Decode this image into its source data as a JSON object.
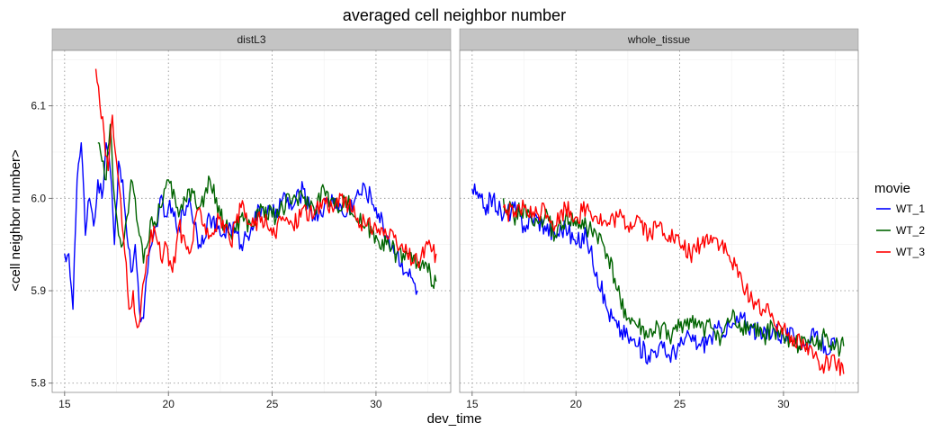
{
  "chart_data": {
    "type": "line",
    "title": "averaged cell neighbor number",
    "xlabel": "dev_time",
    "ylabel": "<cell neighbor number>",
    "xlim": [
      14.4,
      33.6
    ],
    "ylim": [
      5.79,
      6.16
    ],
    "x_ticks": [
      15,
      20,
      25,
      30
    ],
    "y_ticks": [
      5.8,
      5.9,
      6.0,
      6.1
    ],
    "y_tick_labels": [
      "5.8",
      "5.9",
      "6.0",
      "6.1"
    ],
    "grid": true,
    "legend": {
      "title": "movie",
      "position": "right",
      "entries": [
        "WT_1",
        "WT_2",
        "WT_3"
      ]
    },
    "series_colors": {
      "WT_1": "#0000ff",
      "WT_2": "#006400",
      "WT_3": "#ff0000"
    },
    "panels": [
      {
        "name": "distL3",
        "series": [
          {
            "name": "WT_1",
            "x": [
              15.0,
              15.2,
              15.4,
              15.6,
              15.8,
              16.0,
              16.2,
              16.4,
              16.6,
              16.8,
              17.0,
              17.2,
              17.4,
              17.6,
              17.8,
              18.0,
              18.2,
              18.4,
              18.6,
              18.8,
              19.0,
              19.2,
              19.4,
              19.6,
              19.8,
              20.0,
              20.5,
              21.0,
              21.5,
              22.0,
              22.5,
              23.0,
              23.5,
              24.0,
              24.5,
              25.0,
              25.5,
              26.0,
              26.5,
              27.0,
              27.5,
              28.0,
              28.5,
              29.0,
              29.5,
              30.0,
              30.5,
              31.0,
              31.5,
              32.0
            ],
            "values": [
              5.94,
              5.94,
              5.88,
              6.02,
              6.06,
              5.96,
              6.0,
              5.97,
              6.02,
              6.0,
              6.06,
              6.03,
              5.95,
              6.04,
              6.02,
              5.96,
              5.92,
              5.95,
              5.88,
              5.87,
              5.92,
              5.95,
              5.97,
              6.0,
              5.98,
              5.99,
              5.97,
              6.0,
              5.95,
              5.98,
              5.96,
              5.97,
              5.95,
              5.97,
              5.99,
              5.98,
              6.0,
              5.99,
              6.01,
              5.98,
              5.99,
              6.0,
              5.98,
              6.0,
              6.01,
              5.99,
              5.96,
              5.94,
              5.92,
              5.9
            ]
          },
          {
            "name": "WT_2",
            "x": [
              16.6,
              16.8,
              17.0,
              17.2,
              17.4,
              17.6,
              17.8,
              18.0,
              18.2,
              18.4,
              18.6,
              18.8,
              19.0,
              19.2,
              19.4,
              19.6,
              19.8,
              20.0,
              20.5,
              21.0,
              21.5,
              22.0,
              22.5,
              23.0,
              23.5,
              24.0,
              24.5,
              25.0,
              25.5,
              26.0,
              26.5,
              27.0,
              27.5,
              28.0,
              28.5,
              29.0,
              29.5,
              30.0,
              30.5,
              31.0,
              31.5,
              32.0,
              32.5,
              32.9
            ],
            "values": [
              6.06,
              6.04,
              6.02,
              6.08,
              6.0,
              5.96,
              5.95,
              5.98,
              6.02,
              6.0,
              5.96,
              5.93,
              5.95,
              5.98,
              5.97,
              5.99,
              6.01,
              6.02,
              5.98,
              6.01,
              5.99,
              6.02,
              5.98,
              5.96,
              5.98,
              5.97,
              5.99,
              5.98,
              5.99,
              6.0,
              6.0,
              5.99,
              6.01,
              5.99,
              6.0,
              5.98,
              5.97,
              5.96,
              5.95,
              5.94,
              5.94,
              5.93,
              5.92,
              5.91
            ]
          },
          {
            "name": "WT_3",
            "x": [
              16.5,
              16.7,
              16.9,
              17.1,
              17.3,
              17.5,
              17.7,
              17.9,
              18.1,
              18.3,
              18.5,
              18.7,
              18.9,
              19.1,
              19.3,
              19.5,
              19.7,
              19.9,
              20.2,
              20.5,
              21.0,
              21.5,
              22.0,
              22.5,
              23.0,
              23.5,
              24.0,
              24.5,
              25.0,
              25.5,
              26.0,
              26.5,
              27.0,
              27.5,
              28.0,
              28.5,
              29.0,
              29.5,
              30.0,
              30.5,
              31.0,
              31.5,
              32.0,
              32.5,
              32.9
            ],
            "values": [
              6.14,
              6.1,
              6.07,
              6.03,
              6.09,
              6.04,
              6.0,
              5.94,
              5.88,
              5.9,
              5.86,
              5.89,
              5.92,
              5.95,
              5.97,
              5.95,
              5.93,
              5.95,
              5.92,
              5.97,
              5.94,
              5.99,
              5.96,
              5.98,
              5.95,
              5.99,
              5.97,
              5.98,
              5.96,
              5.98,
              5.97,
              5.99,
              5.98,
              6.0,
              5.99,
              6.0,
              5.98,
              5.97,
              5.97,
              5.96,
              5.95,
              5.94,
              5.93,
              5.95,
              5.94
            ]
          }
        ]
      },
      {
        "name": "whole_tissue",
        "series": [
          {
            "name": "WT_1",
            "x": [
              15.0,
              15.3,
              15.6,
              16.0,
              16.5,
              17.0,
              17.5,
              18.0,
              18.5,
              19.0,
              19.5,
              20.0,
              20.5,
              21.0,
              21.5,
              22.0,
              22.5,
              23.0,
              23.5,
              24.0,
              24.5,
              25.0,
              25.5,
              26.0,
              26.5,
              27.0,
              27.5,
              28.0,
              28.5,
              29.0,
              29.5,
              30.0,
              30.5,
              31.0,
              31.5,
              32.0,
              32.5
            ],
            "values": [
              6.01,
              6.0,
              5.99,
              6.0,
              5.98,
              5.99,
              5.97,
              5.98,
              5.97,
              5.96,
              5.97,
              5.95,
              5.96,
              5.92,
              5.88,
              5.86,
              5.85,
              5.84,
              5.83,
              5.84,
              5.83,
              5.84,
              5.85,
              5.84,
              5.85,
              5.86,
              5.86,
              5.87,
              5.86,
              5.85,
              5.86,
              5.85,
              5.85,
              5.84,
              5.85,
              5.84,
              5.84
            ]
          },
          {
            "name": "WT_2",
            "x": [
              16.5,
              17.0,
              17.5,
              18.0,
              18.5,
              19.0,
              19.5,
              20.0,
              20.5,
              21.0,
              21.5,
              22.0,
              22.5,
              23.0,
              23.5,
              24.0,
              24.5,
              25.0,
              25.5,
              26.0,
              26.5,
              27.0,
              27.5,
              28.0,
              28.5,
              29.0,
              29.5,
              30.0,
              30.5,
              31.0,
              31.5,
              32.0,
              32.5,
              32.9
            ],
            "values": [
              6.0,
              5.98,
              5.99,
              5.97,
              5.98,
              5.96,
              5.98,
              5.97,
              5.97,
              5.96,
              5.94,
              5.9,
              5.87,
              5.86,
              5.85,
              5.86,
              5.85,
              5.86,
              5.87,
              5.86,
              5.86,
              5.85,
              5.87,
              5.86,
              5.86,
              5.85,
              5.86,
              5.85,
              5.84,
              5.85,
              5.84,
              5.85,
              5.84,
              5.84
            ]
          },
          {
            "name": "WT_3",
            "x": [
              16.5,
              17.0,
              17.5,
              18.0,
              18.5,
              19.0,
              19.5,
              20.0,
              20.5,
              21.0,
              21.5,
              22.0,
              22.5,
              23.0,
              23.5,
              24.0,
              24.5,
              25.0,
              25.5,
              26.0,
              26.5,
              27.0,
              27.5,
              28.0,
              28.5,
              29.0,
              29.5,
              30.0,
              30.5,
              31.0,
              31.5,
              32.0,
              32.5,
              32.9
            ],
            "values": [
              5.99,
              5.98,
              5.99,
              5.98,
              5.99,
              5.97,
              5.99,
              5.98,
              5.99,
              5.98,
              5.97,
              5.98,
              5.97,
              5.98,
              5.96,
              5.97,
              5.96,
              5.95,
              5.94,
              5.95,
              5.96,
              5.95,
              5.93,
              5.91,
              5.89,
              5.88,
              5.87,
              5.86,
              5.85,
              5.84,
              5.83,
              5.82,
              5.82,
              5.81
            ]
          }
        ]
      }
    ]
  }
}
